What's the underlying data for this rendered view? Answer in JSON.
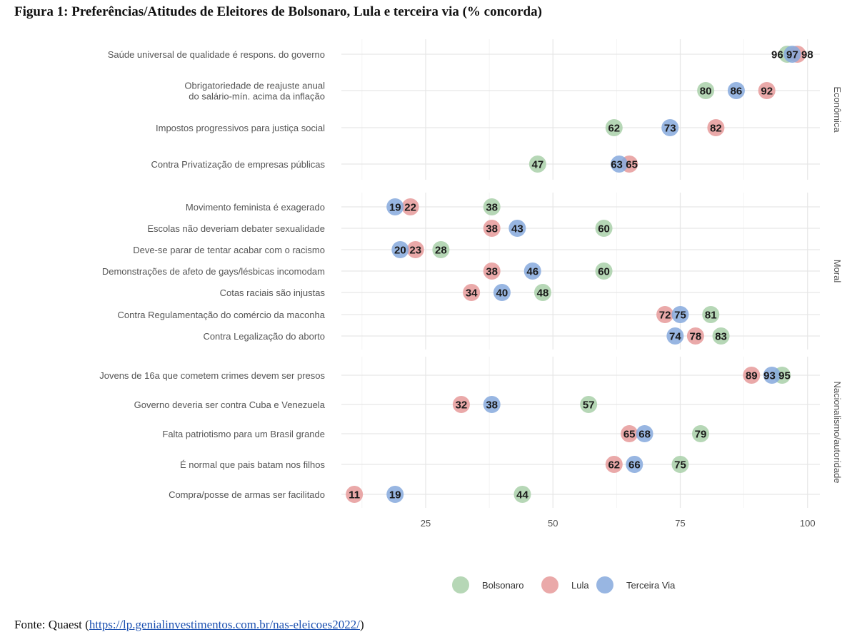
{
  "title": "Figura 1: Preferências/Atitudes de Eleitores de Bolsonaro, Lula e terceira via (% concorda)",
  "source": {
    "prefix": "Fonte: Quaest (",
    "link": "https://lp.genialinvestimentos.com.br/nas-eleicoes2022/",
    "suffix": ")"
  },
  "chart_data": {
    "type": "scatter",
    "title": "Figura 1: Preferências/Atitudes de Eleitores de Bolsonaro, Lula e terceira via (% concorda)",
    "xlabel": "",
    "ylabel": "",
    "xlim": [
      8,
      104
    ],
    "xticks": [
      25,
      50,
      75,
      100
    ],
    "grid": true,
    "legend": {
      "position": "bottom",
      "entries": [
        "Bolsonaro",
        "Lula",
        "Terceira Via"
      ]
    },
    "colors": {
      "Bolsonaro": "#a9d0a9",
      "Lula": "#e69a9a",
      "Terceira Via": "#86a9dd"
    },
    "facets": [
      {
        "name": "Econômica",
        "rows": [
          {
            "label": [
              "Saúde universal de qualidade é respons. do governo"
            ],
            "Bolsonaro": 96,
            "Lula": 98,
            "Terceira Via": 97
          },
          {
            "label": [
              "Obrigatoriedade de reajuste anual",
              "do salário-mín. acima da inflação"
            ],
            "Bolsonaro": 80,
            "Lula": 92,
            "Terceira Via": 86
          },
          {
            "label": [
              "Impostos progressivos para justiça social"
            ],
            "Bolsonaro": 62,
            "Lula": 82,
            "Terceira Via": 73
          },
          {
            "label": [
              "Contra Privatização de empresas públicas"
            ],
            "Bolsonaro": 47,
            "Lula": 65,
            "Terceira Via": 63
          }
        ]
      },
      {
        "name": "Moral",
        "rows": [
          {
            "label": [
              "Movimento feminista é exagerado"
            ],
            "Bolsonaro": 38,
            "Lula": 22,
            "Terceira Via": 19
          },
          {
            "label": [
              "Escolas não deveriam debater sexualidade"
            ],
            "Bolsonaro": 60,
            "Lula": 38,
            "Terceira Via": 43
          },
          {
            "label": [
              "Deve-se parar de tentar acabar com o racismo"
            ],
            "Bolsonaro": 28,
            "Lula": 23,
            "Terceira Via": 20
          },
          {
            "label": [
              "Demonstrações de afeto de gays/lésbicas incomodam"
            ],
            "Bolsonaro": 60,
            "Lula": 38,
            "Terceira Via": 46
          },
          {
            "label": [
              "Cotas raciais são injustas"
            ],
            "Bolsonaro": 48,
            "Lula": 34,
            "Terceira Via": 40
          },
          {
            "label": [
              "Contra Regulamentação do comércio da maconha"
            ],
            "Bolsonaro": 81,
            "Lula": 72,
            "Terceira Via": 75
          },
          {
            "label": [
              "Contra Legalização do aborto"
            ],
            "Bolsonaro": 83,
            "Lula": 78,
            "Terceira Via": 74
          }
        ]
      },
      {
        "name": "Nacionalismo/autoridade",
        "rows": [
          {
            "label": [
              "Jovens de 16a que cometem crimes devem ser presos"
            ],
            "Bolsonaro": 95,
            "Lula": 89,
            "Terceira Via": 93
          },
          {
            "label": [
              "Governo deveria ser contra Cuba e Venezuela"
            ],
            "Bolsonaro": 57,
            "Lula": 32,
            "Terceira Via": 38
          },
          {
            "label": [
              "Falta patriotismo para um Brasil grande"
            ],
            "Bolsonaro": 79,
            "Lula": 65,
            "Terceira Via": 68
          },
          {
            "label": [
              "É normal que pais batam nos filhos"
            ],
            "Bolsonaro": 75,
            "Lula": 62,
            "Terceira Via": 66
          },
          {
            "label": [
              "Compra/posse de armas ser facilitado"
            ],
            "Bolsonaro": 44,
            "Lula": 11,
            "Terceira Via": 19
          }
        ]
      }
    ]
  }
}
